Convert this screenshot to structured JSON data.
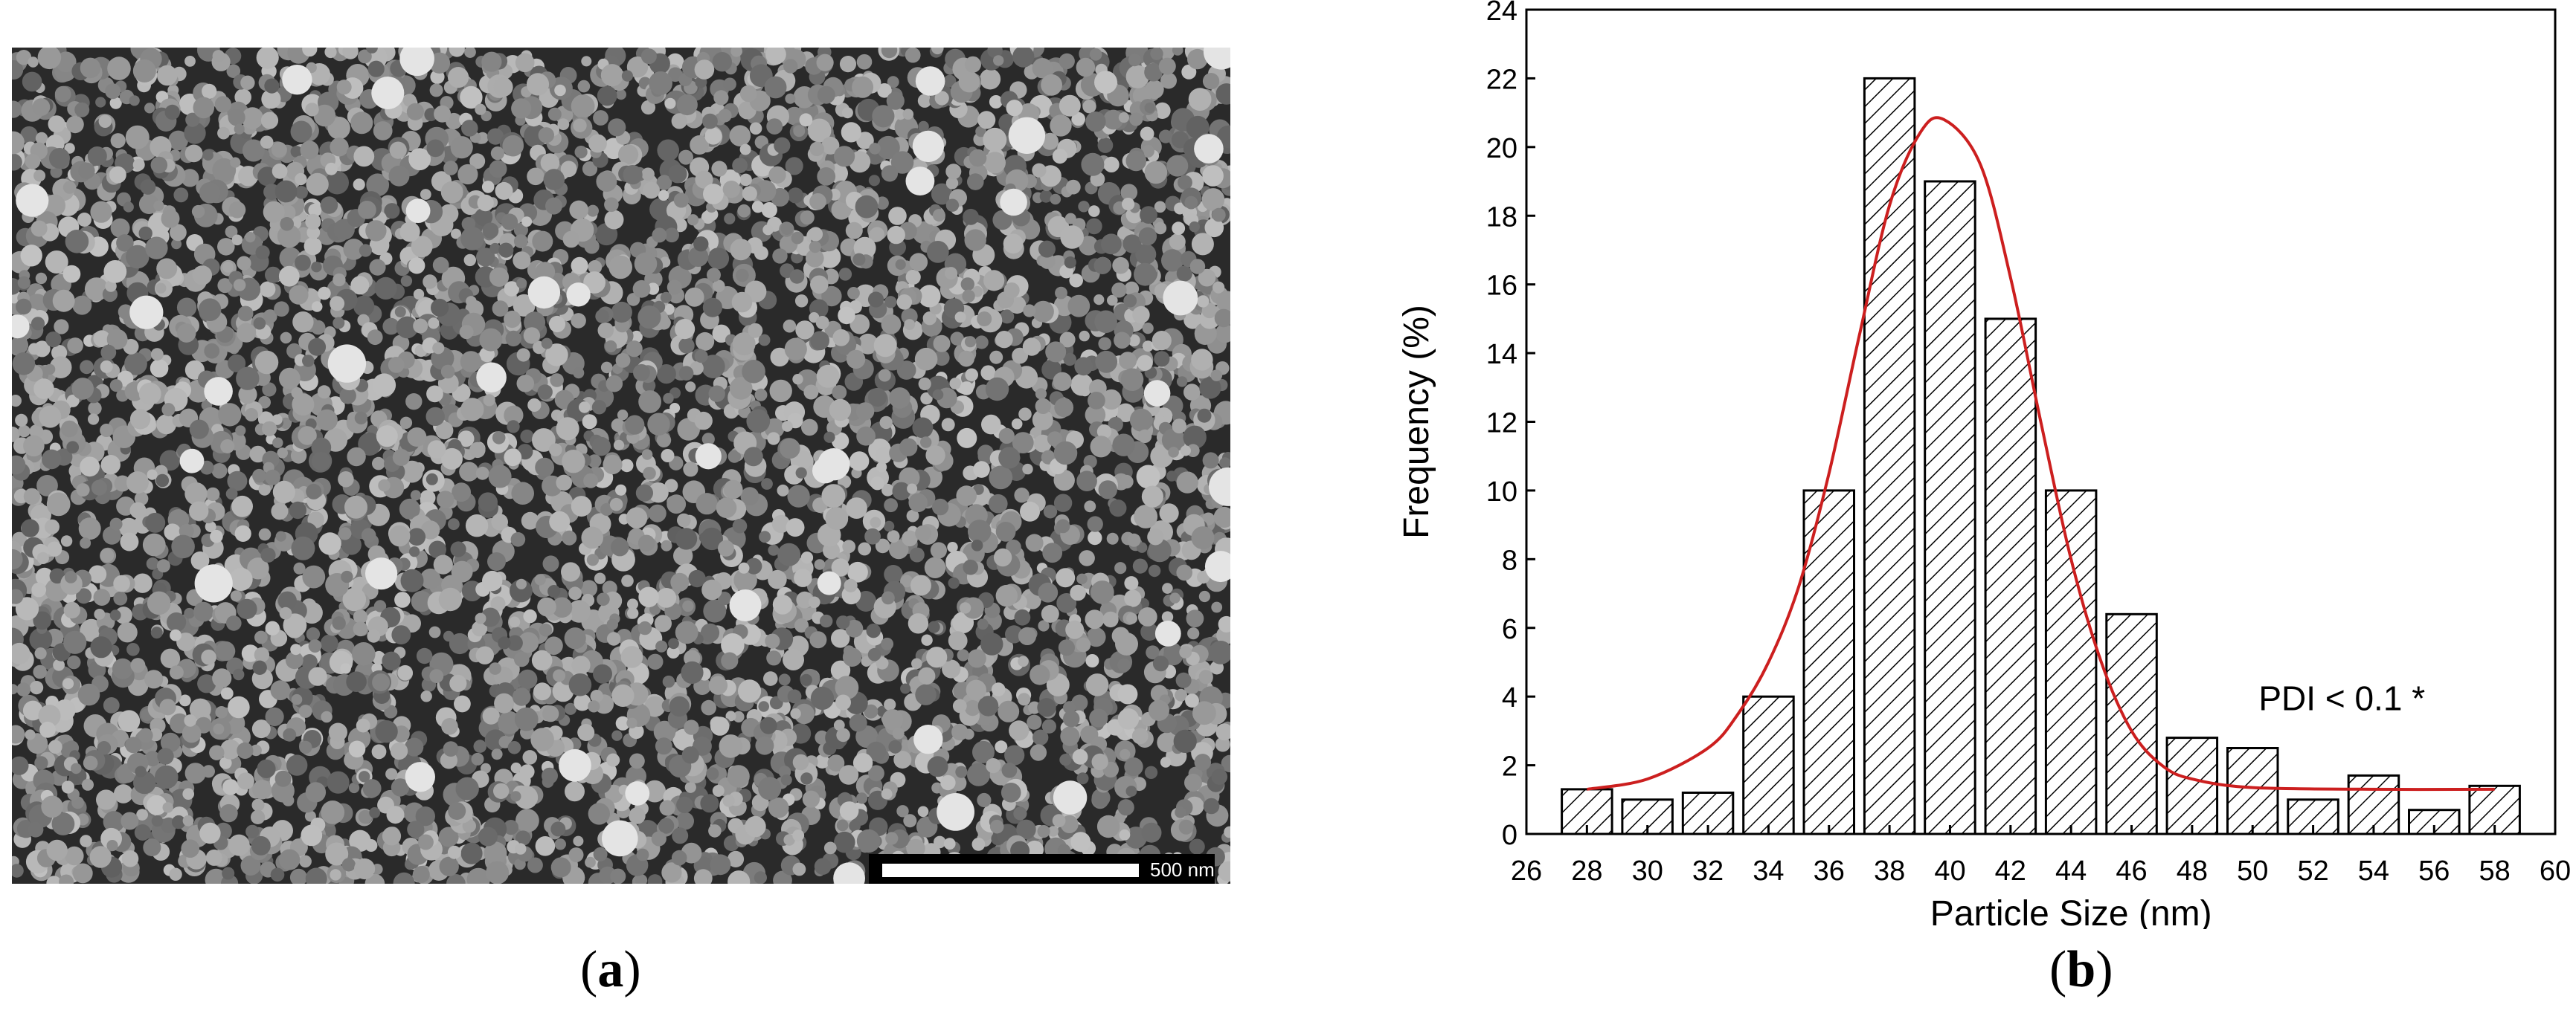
{
  "panel_a": {
    "image_name": "sem-micrograph-nanoparticles",
    "scale_bar_label": "500 nm"
  },
  "captions": {
    "a_open": "(",
    "a_letter": "a",
    "a_close": ")",
    "b_open": "(",
    "b_letter": "b",
    "b_close": ")"
  },
  "chart_data": {
    "type": "bar",
    "categories": [
      "28",
      "30",
      "32",
      "34",
      "36",
      "38",
      "40",
      "42",
      "44",
      "46",
      "48",
      "50",
      "52",
      "54",
      "56",
      "58"
    ],
    "values": [
      1.3,
      1.0,
      1.2,
      4.0,
      10.0,
      22.0,
      19.0,
      15.0,
      10.0,
      6.4,
      2.8,
      2.5,
      1.0,
      1.7,
      0.7,
      1.4
    ],
    "xlabel": "Particle Size (nm)",
    "ylabel": "Frequency (%)",
    "xlim": [
      26,
      60
    ],
    "ylim": [
      0,
      24
    ],
    "xticks": [
      "26",
      "28",
      "30",
      "32",
      "34",
      "36",
      "38",
      "40",
      "42",
      "44",
      "46",
      "48",
      "50",
      "52",
      "54",
      "56",
      "58",
      "60"
    ],
    "yticks": [
      "0",
      "2",
      "4",
      "6",
      "8",
      "10",
      "12",
      "14",
      "16",
      "18",
      "20",
      "22",
      "24"
    ],
    "annotation": "PDI < 0.1 *",
    "bar_pattern": "diagonal-hatch",
    "fit_curve": {
      "color": "#cc1f1f",
      "x": [
        28,
        30,
        32,
        33,
        34,
        35,
        36,
        37,
        38,
        39,
        39.8,
        41,
        42,
        43,
        44,
        45,
        46,
        47,
        48,
        50,
        54,
        58
      ],
      "y": [
        1.3,
        1.6,
        2.5,
        3.5,
        5.0,
        7.2,
        10.5,
        14.5,
        18.3,
        20.4,
        20.8,
        19.5,
        16.2,
        12.0,
        8.0,
        5.0,
        3.0,
        2.0,
        1.6,
        1.35,
        1.3,
        1.3
      ]
    }
  }
}
